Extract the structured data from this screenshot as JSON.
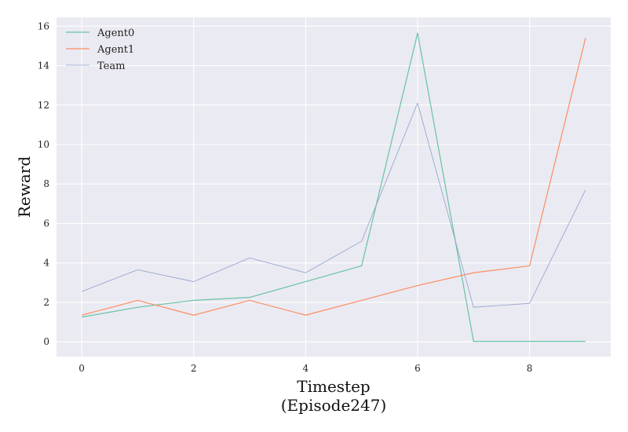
{
  "chart_data": {
    "type": "line",
    "xlabel": "Timestep",
    "xlabel_sub": "(Episode247)",
    "ylabel": "Reward",
    "xlim": [
      -0.45,
      9.45
    ],
    "ylim": [
      -0.75,
      16.45
    ],
    "x_ticks": [
      0,
      2,
      4,
      6,
      8
    ],
    "y_ticks": [
      0,
      2,
      4,
      6,
      8,
      10,
      12,
      14,
      16
    ],
    "x_ticks_labels": [
      "0",
      "2",
      "4",
      "6",
      "8"
    ],
    "y_ticks_labels": [
      "0",
      "2",
      "4",
      "6",
      "8",
      "10",
      "12",
      "14",
      "16"
    ],
    "grid": true,
    "legend_position": "top-left",
    "x": [
      0,
      1,
      2,
      3,
      4,
      5,
      6,
      7,
      8,
      9
    ],
    "series": [
      {
        "name": "Agent0",
        "color": "#66c2a5",
        "values": [
          1.25,
          1.75,
          2.1,
          2.25,
          3.05,
          3.85,
          15.65,
          0.02,
          0.02,
          0.02
        ]
      },
      {
        "name": "Agent1",
        "color": "#fc8d62",
        "values": [
          1.35,
          2.1,
          1.35,
          2.1,
          1.35,
          2.1,
          2.85,
          3.5,
          3.85,
          15.4
        ]
      },
      {
        "name": "Team",
        "color": "#8da0cb",
        "values": [
          2.55,
          3.65,
          3.05,
          4.25,
          3.5,
          5.1,
          12.1,
          1.75,
          1.95,
          7.7
        ]
      }
    ]
  },
  "colors": {
    "plot_background": "#eaeaf2",
    "grid": "#ffffff"
  }
}
